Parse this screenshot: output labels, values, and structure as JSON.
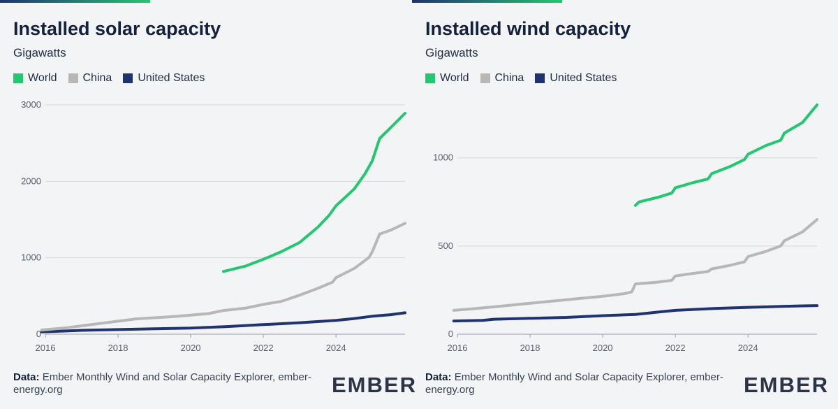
{
  "brand": {
    "logo": "EMBER",
    "colors": {
      "green": "#22c76f",
      "grey": "#b9b7b6",
      "navy": "#1e3370",
      "gradient_start": "#1e3370",
      "gradient_end": "#22c76f"
    }
  },
  "footer": {
    "data_label": "Data:",
    "source_text": "Ember Monthly Wind and Solar Capacity Explorer, ember-energy.org"
  },
  "legend": [
    {
      "label": "World",
      "color": "#22c76f"
    },
    {
      "label": "China",
      "color": "#b9b7b6"
    },
    {
      "label": "United States",
      "color": "#1e3370"
    }
  ],
  "chart_data": [
    {
      "type": "line",
      "title": "Installed solar capacity",
      "subtitle": "Gigawatts",
      "xlabel": "",
      "ylabel": "Gigawatts",
      "xlim": [
        2016,
        2025.9
      ],
      "ylim": [
        0,
        3000
      ],
      "yticks": [
        0,
        1000,
        2000,
        3000
      ],
      "xticks": [
        2016,
        2018,
        2020,
        2022,
        2024
      ],
      "series": [
        {
          "name": "World",
          "color": "#22c76f",
          "x": [
            2020.9,
            2021.5,
            2022.0,
            2022.5,
            2023.0,
            2023.5,
            2023.8,
            2024.0,
            2024.5,
            2024.8,
            2025.0,
            2025.2,
            2025.5,
            2025.9
          ],
          "values": [
            820,
            890,
            980,
            1080,
            1200,
            1400,
            1550,
            1680,
            1900,
            2100,
            2270,
            2560,
            2700,
            2890
          ]
        },
        {
          "name": "China",
          "color": "#b9b7b6",
          "x": [
            2015.9,
            2016.5,
            2017.0,
            2017.5,
            2018.0,
            2018.5,
            2019.0,
            2019.5,
            2020.0,
            2020.5,
            2020.9,
            2021.5,
            2022.0,
            2022.5,
            2023.0,
            2023.5,
            2023.9,
            2024.0,
            2024.5,
            2024.9,
            2025.0,
            2025.2,
            2025.5,
            2025.9
          ],
          "values": [
            55,
            80,
            110,
            140,
            170,
            200,
            215,
            230,
            250,
            270,
            310,
            340,
            390,
            430,
            510,
            600,
            680,
            740,
            860,
            1000,
            1080,
            1310,
            1360,
            1450
          ]
        },
        {
          "name": "United States",
          "color": "#1e3370",
          "x": [
            2015.9,
            2017.0,
            2018.0,
            2019.0,
            2020.0,
            2021.0,
            2022.0,
            2023.0,
            2024.0,
            2024.5,
            2025.0,
            2025.5,
            2025.9
          ],
          "values": [
            30,
            50,
            60,
            70,
            80,
            100,
            125,
            150,
            180,
            205,
            235,
            255,
            280
          ]
        }
      ]
    },
    {
      "type": "line",
      "title": "Installed wind capacity",
      "subtitle": "Gigawatts",
      "xlabel": "",
      "ylabel": "Gigawatts",
      "xlim": [
        2016,
        2025.9
      ],
      "ylim": [
        0,
        1300
      ],
      "yticks": [
        0,
        500,
        1000
      ],
      "xticks": [
        2016,
        2018,
        2020,
        2022,
        2024
      ],
      "series": [
        {
          "name": "World",
          "color": "#22c76f",
          "x": [
            2020.9,
            2021.0,
            2021.5,
            2021.9,
            2022.0,
            2022.5,
            2022.9,
            2023.0,
            2023.5,
            2023.9,
            2024.0,
            2024.5,
            2024.9,
            2025.0,
            2025.5,
            2025.9
          ],
          "values": [
            730,
            750,
            775,
            800,
            830,
            860,
            880,
            910,
            950,
            990,
            1020,
            1070,
            1100,
            1140,
            1200,
            1300
          ]
        },
        {
          "name": "China",
          "color": "#b9b7b6",
          "x": [
            2015.9,
            2016.5,
            2017.0,
            2017.5,
            2018.0,
            2018.5,
            2019.0,
            2019.5,
            2020.0,
            2020.6,
            2020.8,
            2020.9,
            2021.5,
            2021.9,
            2022.0,
            2022.5,
            2022.9,
            2023.0,
            2023.5,
            2023.9,
            2024.0,
            2024.5,
            2024.9,
            2025.0,
            2025.5,
            2025.9
          ],
          "values": [
            135,
            145,
            155,
            165,
            175,
            185,
            195,
            205,
            215,
            230,
            240,
            285,
            295,
            305,
            330,
            345,
            355,
            370,
            390,
            410,
            440,
            470,
            500,
            530,
            580,
            650
          ]
        },
        {
          "name": "United States",
          "color": "#1e3370",
          "x": [
            2015.9,
            2016.7,
            2017.0,
            2018.0,
            2019.0,
            2020.0,
            2020.9,
            2021.5,
            2022.0,
            2023.0,
            2024.0,
            2025.0,
            2025.9
          ],
          "values": [
            75,
            78,
            85,
            90,
            95,
            105,
            112,
            125,
            135,
            145,
            152,
            158,
            162
          ]
        }
      ]
    }
  ]
}
